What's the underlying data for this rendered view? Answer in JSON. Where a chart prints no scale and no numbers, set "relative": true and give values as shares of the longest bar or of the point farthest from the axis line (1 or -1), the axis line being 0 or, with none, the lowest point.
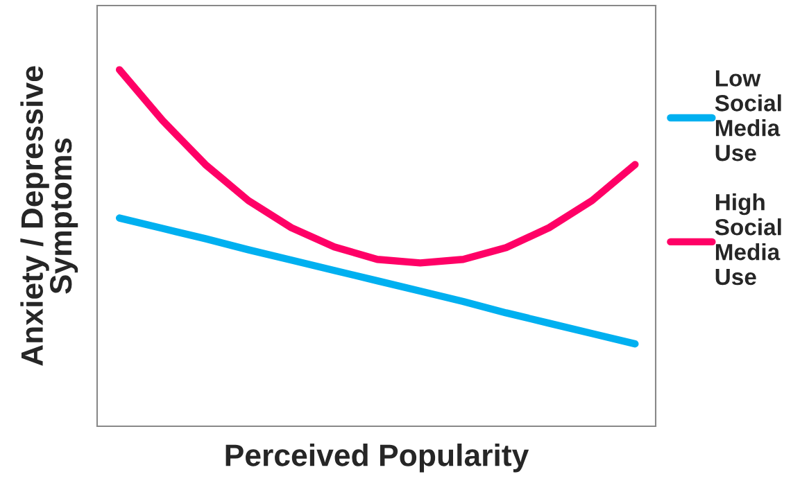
{
  "chart_data": {
    "type": "line",
    "relative": true,
    "xlabel": "Perceived Popularity",
    "ylabel": "Anxiety / Depressive Symptoms",
    "categories": [
      null,
      null,
      null,
      null,
      null,
      null,
      null,
      null,
      null,
      null,
      null,
      null,
      null
    ],
    "series": [
      {
        "name": "Low Social Media Use",
        "color": "#00b0f0",
        "values": [
          0.584,
          0.555,
          0.526,
          0.495,
          0.466,
          0.437,
          0.408,
          0.379,
          0.35,
          0.318,
          0.289,
          0.26,
          0.231
        ]
      },
      {
        "name": "High Social Media Use",
        "color": "#ff0066",
        "values": [
          1,
          0.858,
          0.734,
          0.633,
          0.557,
          0.503,
          0.468,
          0.458,
          0.468,
          0.501,
          0.557,
          0.633,
          0.734
        ]
      }
    ],
    "legend": "right",
    "tick_labels": false,
    "marker": "none",
    "line_style": "solid"
  }
}
